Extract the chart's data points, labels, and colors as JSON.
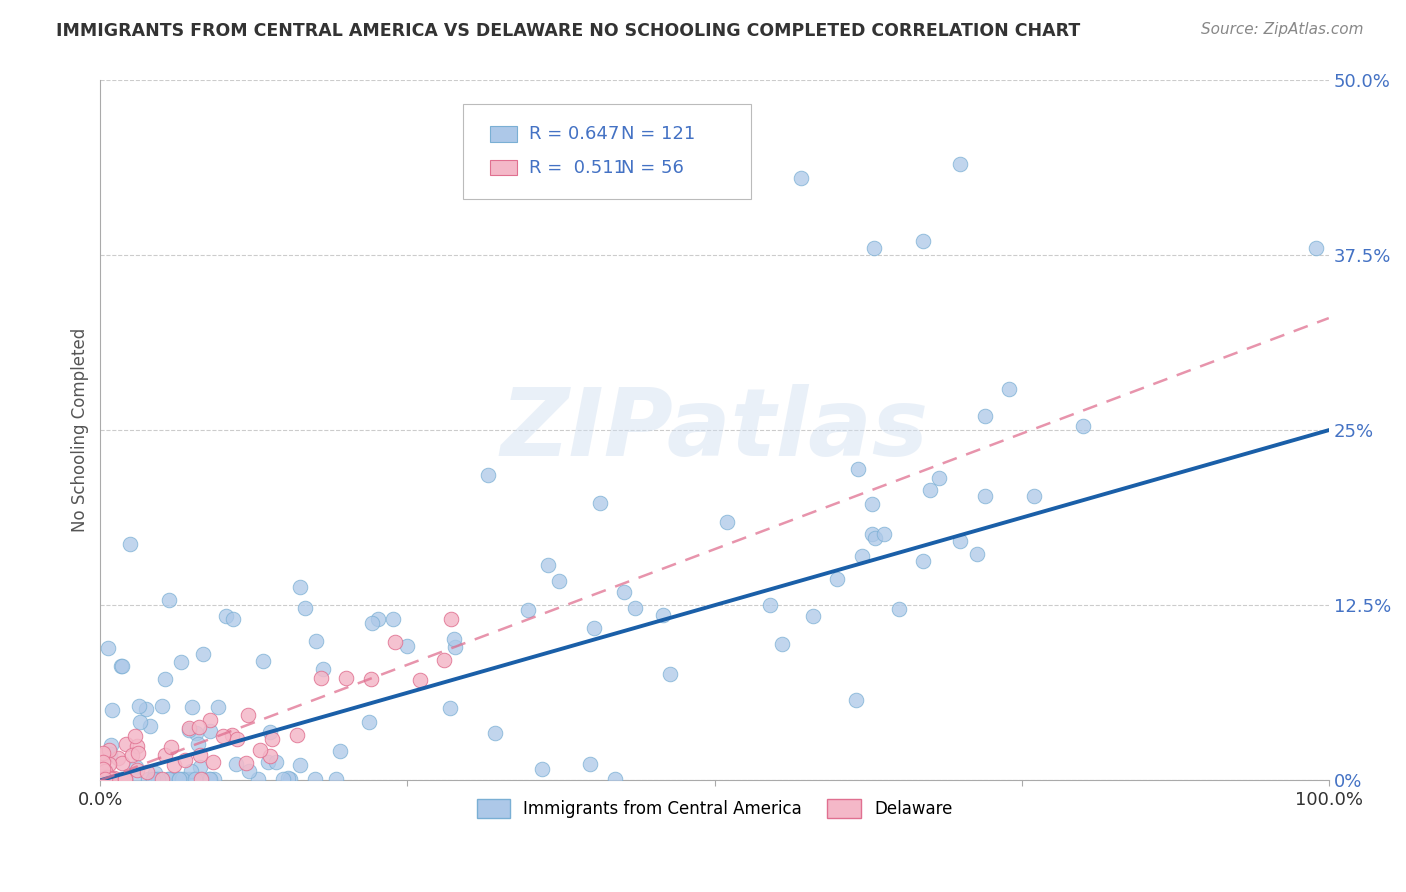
{
  "title": "IMMIGRANTS FROM CENTRAL AMERICA VS DELAWARE NO SCHOOLING COMPLETED CORRELATION CHART",
  "source": "Source: ZipAtlas.com",
  "ylabel": "No Schooling Completed",
  "r_blue": 0.647,
  "n_blue": 121,
  "r_pink": 0.511,
  "n_pink": 56,
  "blue_color": "#adc8e8",
  "blue_edge": "#7aafd4",
  "pink_color": "#f4b8c8",
  "pink_edge": "#e07090",
  "blue_line_color": "#1a5fa8",
  "pink_line_color": "#e07090",
  "watermark_text": "ZIPatlas",
  "legend_blue": "Immigrants from Central America",
  "legend_pink": "Delaware",
  "yticks": [
    0.0,
    0.125,
    0.25,
    0.375,
    0.5
  ],
  "ytick_labels": [
    "0%",
    "12.5%",
    "25%",
    "37.5%",
    "50.0%"
  ],
  "xlim": [
    0.0,
    1.0
  ],
  "ylim": [
    0.0,
    0.5
  ],
  "blue_line_x0": 0.0,
  "blue_line_y0": 0.0,
  "blue_line_x1": 1.0,
  "blue_line_y1": 0.25,
  "pink_line_x0": 0.0,
  "pink_line_y0": 0.0,
  "pink_line_x1": 1.0,
  "pink_line_y1": 0.33,
  "title_color": "#333333",
  "source_color": "#888888",
  "ytick_color": "#4472c4",
  "xtick_color": "#333333",
  "grid_color": "#cccccc",
  "ylabel_color": "#555555"
}
